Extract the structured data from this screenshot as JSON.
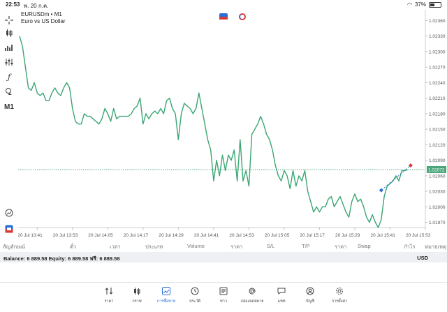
{
  "status_bar": {
    "time": "22:53",
    "date": "พ. 20 ก.ค.",
    "battery": "37%",
    "battery_level": 0.37
  },
  "toolbar": {
    "timeframe_label": "M1"
  },
  "chart_header": {
    "symbol": "EURUSDm • M1",
    "description": "Euro vs US Dollar"
  },
  "chart_data": {
    "type": "line",
    "y_ticks": [
      "1.02360",
      "1.02330",
      "1.02300",
      "1.02270",
      "1.02240",
      "1.02210",
      "1.02180",
      "1.02150",
      "1.02120",
      "1.02090",
      "1.02060",
      "1.02030",
      "1.02000",
      "1.01970"
    ],
    "x_ticks": [
      "20 Jul 13:41",
      "20 Jul 13:53",
      "20 Jul 14:05",
      "20 Jul 14:17",
      "20 Jul 14:29",
      "20 Jul 14:41",
      "20 Jul 14:53",
      "20 Jul 15:05",
      "20 Jul 15:17",
      "20 Jul 15:29",
      "20 Jul 15:41",
      "20 Jul 15:53"
    ],
    "current_price": "1.02072",
    "ylim": [
      1.0196,
      1.0237
    ],
    "x_start": "2022-07-20T13:35",
    "series": [
      {
        "values": [
          [
            "13:35",
            1.0233
          ],
          [
            "13:36",
            1.0231
          ],
          [
            "13:37",
            1.0227
          ],
          [
            "13:38",
            1.0223
          ],
          [
            "13:39",
            1.02225
          ],
          [
            "13:40",
            1.0224
          ],
          [
            "13:41",
            1.0222
          ],
          [
            "13:42",
            1.02215
          ],
          [
            "13:43",
            1.0222
          ],
          [
            "13:44",
            1.02205
          ],
          [
            "13:45",
            1.02205
          ],
          [
            "13:46",
            1.0222
          ],
          [
            "13:47",
            1.0223
          ],
          [
            "13:48",
            1.0222
          ],
          [
            "13:49",
            1.02215
          ],
          [
            "13:50",
            1.0223
          ],
          [
            "13:51",
            1.0224
          ],
          [
            "13:52",
            1.0223
          ],
          [
            "13:53",
            1.0219
          ],
          [
            "13:54",
            1.02165
          ],
          [
            "13:55",
            1.0216
          ],
          [
            "13:56",
            1.0216
          ],
          [
            "13:57",
            1.0218
          ],
          [
            "13:58",
            1.02175
          ],
          [
            "13:59",
            1.02175
          ],
          [
            "14:00",
            1.0217
          ],
          [
            "14:01",
            1.02165
          ],
          [
            "14:02",
            1.0216
          ],
          [
            "14:03",
            1.0217
          ],
          [
            "14:04",
            1.0219
          ],
          [
            "14:05",
            1.0218
          ],
          [
            "14:06",
            1.02165
          ],
          [
            "14:07",
            1.0219
          ],
          [
            "14:08",
            1.0217
          ],
          [
            "14:09",
            1.02175
          ],
          [
            "14:10",
            1.02175
          ],
          [
            "14:11",
            1.02175
          ],
          [
            "14:12",
            1.02175
          ],
          [
            "14:13",
            1.0218
          ],
          [
            "14:14",
            1.0219
          ],
          [
            "14:15",
            1.02195
          ],
          [
            "14:16",
            1.0221
          ],
          [
            "14:17",
            1.0216
          ],
          [
            "14:18",
            1.0218
          ],
          [
            "14:19",
            1.0217
          ],
          [
            "14:20",
            1.0218
          ],
          [
            "14:21",
            1.02185
          ],
          [
            "14:22",
            1.0218
          ],
          [
            "14:23",
            1.0219
          ],
          [
            "14:24",
            1.0218
          ],
          [
            "14:25",
            1.02205
          ],
          [
            "14:26",
            1.0221
          ],
          [
            "14:27",
            1.0219
          ],
          [
            "14:28",
            1.0218
          ],
          [
            "14:29",
            1.0213
          ],
          [
            "14:30",
            1.0218
          ],
          [
            "14:31",
            1.022
          ],
          [
            "14:32",
            1.02195
          ],
          [
            "14:33",
            1.0219
          ],
          [
            "14:34",
            1.0218
          ],
          [
            "14:35",
            1.0219
          ],
          [
            "14:36",
            1.0222
          ],
          [
            "14:37",
            1.0219
          ],
          [
            "14:38",
            1.0216
          ],
          [
            "14:39",
            1.0213
          ],
          [
            "14:40",
            1.0211
          ],
          [
            "14:41",
            1.0205
          ],
          [
            "14:42",
            1.0209
          ],
          [
            "14:43",
            1.0206
          ],
          [
            "14:44",
            1.021
          ],
          [
            "14:45",
            1.0207
          ],
          [
            "14:46",
            1.021
          ],
          [
            "14:47",
            1.0209
          ],
          [
            "14:48",
            1.0211
          ],
          [
            "14:49",
            1.0205
          ],
          [
            "14:50",
            1.0213
          ],
          [
            "14:51",
            1.0205
          ],
          [
            "14:52",
            1.0207
          ],
          [
            "14:53",
            1.0204
          ],
          [
            "14:54",
            1.0214
          ],
          [
            "14:55",
            1.0215
          ],
          [
            "14:56",
            1.0216
          ],
          [
            "14:57",
            1.02175
          ],
          [
            "14:58",
            1.0216
          ],
          [
            "14:59",
            1.0214
          ],
          [
            "15:00",
            1.0213
          ],
          [
            "15:01",
            1.0211
          ],
          [
            "15:02",
            1.0208
          ],
          [
            "15:03",
            1.0206
          ],
          [
            "15:04",
            1.0205
          ],
          [
            "15:05",
            1.0207
          ],
          [
            "15:06",
            1.0206
          ],
          [
            "15:07",
            1.02035
          ],
          [
            "15:08",
            1.0207
          ],
          [
            "15:09",
            1.0204
          ],
          [
            "15:10",
            1.0206
          ],
          [
            "15:11",
            1.0205
          ],
          [
            "15:12",
            1.0207
          ],
          [
            "15:13",
            1.0203
          ],
          [
            "15:14",
            1.0201
          ],
          [
            "15:15",
            1.0199
          ],
          [
            "15:16",
            1.02
          ],
          [
            "15:17",
            1.0199
          ],
          [
            "15:18",
            1.02
          ],
          [
            "15:19",
            1.02
          ],
          [
            "15:20",
            1.02015
          ],
          [
            "15:21",
            1.0202
          ],
          [
            "15:22",
            1.02
          ],
          [
            "15:23",
            1.0201
          ],
          [
            "15:24",
            1.0202
          ],
          [
            "15:25",
            1.02005
          ],
          [
            "15:26",
            1.0199
          ],
          [
            "15:27",
            1.0198
          ],
          [
            "15:28",
            1.0201
          ],
          [
            "15:29",
            1.02025
          ],
          [
            "15:30",
            1.0201
          ],
          [
            "15:31",
            1.02015
          ],
          [
            "15:32",
            1.02
          ],
          [
            "15:33",
            1.0198
          ],
          [
            "15:34",
            1.0197
          ],
          [
            "15:35",
            1.01985
          ],
          [
            "15:36",
            1.0197
          ],
          [
            "15:37",
            1.0196
          ],
          [
            "15:38",
            1.01975
          ],
          [
            "15:39",
            1.0202
          ],
          [
            "15:40",
            1.0204
          ],
          [
            "15:41",
            1.02045
          ],
          [
            "15:42",
            1.0205
          ],
          [
            "15:43",
            1.0206
          ],
          [
            "15:44",
            1.0205
          ],
          [
            "15:45",
            1.0207
          ],
          [
            "15:46",
            1.0207
          ],
          [
            "15:47",
            1.02072
          ]
        ]
      }
    ],
    "trade_markers": [
      {
        "time": "15:38",
        "price": 1.02032,
        "type": "buy",
        "color": "#2a6dd8"
      },
      {
        "time": "15:48",
        "price": 1.0208,
        "type": "sell",
        "color": "#d83a3a"
      }
    ],
    "line_color": "#3aa672",
    "grid": false
  },
  "trade_columns": [
    "สัญลักษณ์",
    "ตั๋ว",
    "เวลา",
    "ประเภท",
    "Volume",
    "ราคา",
    "S/L",
    "T/P",
    "ราคา",
    "Swap",
    "กำไร",
    "หมายเหตุ"
  ],
  "balance_bar": {
    "text": "Balance: 6 889.58 Equity: 6 889.58 ฟรี: 6 889.58",
    "currency": "USD"
  },
  "bottom_nav": [
    {
      "label": "ราคา",
      "icon": "quotes-arrows-icon"
    },
    {
      "label": "กราฟ",
      "icon": "candles-icon"
    },
    {
      "label": "การซื้อขาย",
      "icon": "trade-chart-icon",
      "active": true
    },
    {
      "label": "ประวัติ",
      "icon": "history-clock-icon"
    },
    {
      "label": "ข่าว",
      "icon": "news-icon"
    },
    {
      "label": "กล่องจดหมาย",
      "icon": "mailbox-at-icon"
    },
    {
      "label": "แชท",
      "icon": "chat-bubble-icon"
    },
    {
      "label": "บัญชี",
      "icon": "account-user-icon"
    },
    {
      "label": "การตั้งค่า",
      "icon": "settings-gear-icon"
    }
  ],
  "colors": {
    "accent": "#2a6dd8",
    "line": "#3aa672",
    "price_label": "#4aa57b"
  }
}
